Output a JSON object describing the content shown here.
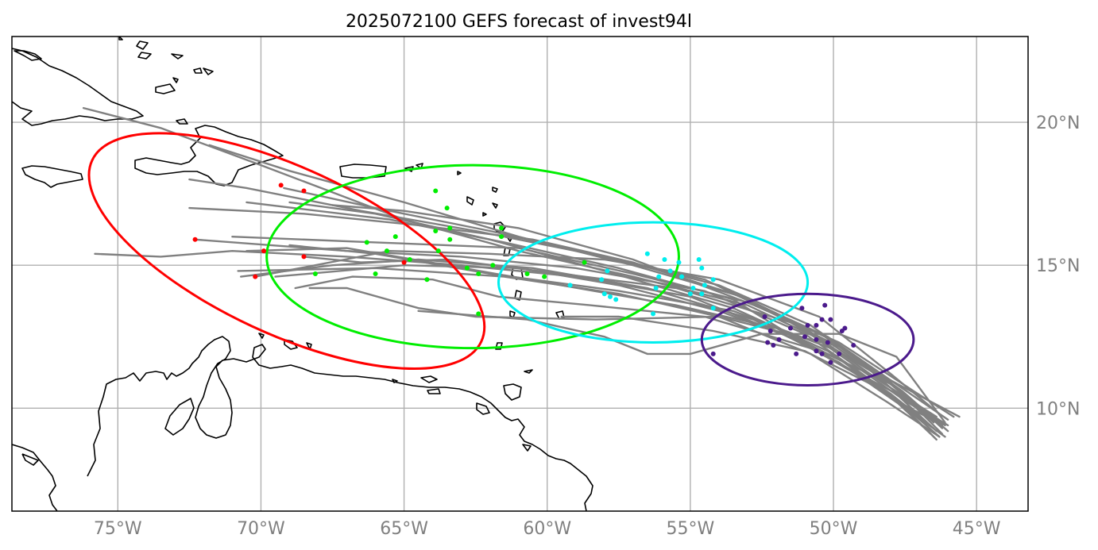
{
  "title": "2025072100 GEFS forecast of invest94l",
  "map": {
    "projection": "PlateCarree",
    "lon_range": [
      -78.7,
      -43.2
    ],
    "lat_range": [
      6.4,
      23.0
    ],
    "gridlines": true,
    "lon_ticks": [
      {
        "value": -75,
        "label": "75°W"
      },
      {
        "value": -70,
        "label": "70°W"
      },
      {
        "value": -65,
        "label": "65°W"
      },
      {
        "value": -60,
        "label": "60°W"
      },
      {
        "value": -55,
        "label": "55°W"
      },
      {
        "value": -50,
        "label": "50°W"
      },
      {
        "value": -45,
        "label": "45°W"
      }
    ],
    "lat_ticks": [
      {
        "value": 20,
        "label": "20°N"
      },
      {
        "value": 15,
        "label": "15°N"
      },
      {
        "value": 10,
        "label": "10°N"
      }
    ],
    "colors": {
      "tracks": "#808080",
      "coastline": "#000000",
      "grid": "#b0b0b0",
      "tick_labels": "#808080"
    }
  },
  "chart_data": {
    "type": "scatter",
    "title": "2025072100 GEFS forecast of invest94l",
    "x_unit": "longitude (deg)",
    "y_unit": "latitude (deg)",
    "tracks": [
      [
        [
          -46.2,
          9.3
        ],
        [
          -47.5,
          10.5
        ],
        [
          -50,
          12.2
        ],
        [
          -53,
          13.6
        ],
        [
          -57,
          14.6
        ],
        [
          -61,
          15.5
        ],
        [
          -65,
          16.6
        ],
        [
          -70,
          18.5
        ],
        [
          -73.5,
          19.8
        ],
        [
          -76.2,
          20.5
        ]
      ],
      [
        [
          -46.0,
          9.2
        ],
        [
          -47.6,
          10.6
        ],
        [
          -50.3,
          12.5
        ],
        [
          -53.2,
          13.9
        ],
        [
          -57,
          15.0
        ],
        [
          -61,
          16.0
        ],
        [
          -65,
          17.2
        ],
        [
          -69,
          18.3
        ],
        [
          -71.8,
          19.2
        ]
      ],
      [
        [
          -46.5,
          9.5
        ],
        [
          -48.0,
          10.9
        ],
        [
          -50.8,
          12.9
        ],
        [
          -54,
          14.3
        ],
        [
          -58,
          15.3
        ],
        [
          -62,
          16.2
        ],
        [
          -66,
          17.0
        ],
        [
          -69.2,
          17.7
        ]
      ],
      [
        [
          -46.3,
          9.0
        ],
        [
          -47.8,
          10.3
        ],
        [
          -50.2,
          12.0
        ],
        [
          -53.5,
          13.5
        ],
        [
          -58,
          14.8
        ],
        [
          -62,
          15.9
        ],
        [
          -66,
          16.8
        ],
        [
          -69,
          17.2
        ]
      ],
      [
        [
          -46.1,
          9.4
        ],
        [
          -47.4,
          10.2
        ],
        [
          -49.5,
          12.0
        ],
        [
          -52.5,
          13.5
        ],
        [
          -57,
          15.2
        ],
        [
          -61,
          16.3
        ],
        [
          -65,
          16.9
        ],
        [
          -67.5,
          17.1
        ]
      ],
      [
        [
          -45.8,
          9.7
        ],
        [
          -47.2,
          10.6
        ],
        [
          -49.8,
          12.3
        ],
        [
          -53,
          13.7
        ],
        [
          -57,
          14.7
        ],
        [
          -61,
          15.6
        ],
        [
          -66,
          15.8
        ],
        [
          -71,
          16.0
        ]
      ],
      [
        [
          -46.4,
          8.9
        ],
        [
          -48,
          10.5
        ],
        [
          -51,
          12.6
        ],
        [
          -54.5,
          14.1
        ],
        [
          -59,
          14.9
        ],
        [
          -63,
          15.3
        ],
        [
          -67,
          15.5
        ],
        [
          -72.3,
          15.9
        ]
      ],
      [
        [
          -46.2,
          9.1
        ],
        [
          -47.9,
          10.8
        ],
        [
          -51.3,
          12.4
        ],
        [
          -55,
          13.9
        ],
        [
          -59,
          14.6
        ],
        [
          -63,
          15.0
        ],
        [
          -67,
          15.3
        ],
        [
          -71,
          15.5
        ],
        [
          -73.5,
          15.3
        ],
        [
          -75.8,
          15.4
        ]
      ],
      [
        [
          -46.5,
          9.6
        ],
        [
          -48.2,
          11.0
        ],
        [
          -51.5,
          13.0
        ],
        [
          -55.5,
          14.2
        ],
        [
          -59.5,
          14.7
        ],
        [
          -63.5,
          15.2
        ],
        [
          -66.5,
          15.1
        ],
        [
          -68.5,
          15.3
        ]
      ],
      [
        [
          -46.0,
          9.4
        ],
        [
          -47.6,
          10.4
        ],
        [
          -50.8,
          12.1
        ],
        [
          -54.5,
          13.2
        ],
        [
          -58.5,
          13.6
        ],
        [
          -61.7,
          13.9
        ],
        [
          -64,
          14.5
        ],
        [
          -66.8,
          14.6
        ],
        [
          -68.8,
          14.2
        ]
      ],
      [
        [
          -46.3,
          9.8
        ],
        [
          -48.0,
          11.2
        ],
        [
          -50.5,
          13.2
        ],
        [
          -54,
          14.5
        ],
        [
          -58,
          15.2
        ],
        [
          -62,
          15.4
        ],
        [
          -65.5,
          15.5
        ],
        [
          -70.2,
          14.6
        ]
      ],
      [
        [
          -46.4,
          9.2
        ],
        [
          -47.7,
          10.4
        ],
        [
          -50.4,
          12.3
        ],
        [
          -54,
          13.2
        ],
        [
          -58.3,
          13.1
        ],
        [
          -62.5,
          13.2
        ],
        [
          -64.5,
          13.5
        ],
        [
          -67,
          14.2
        ],
        [
          -68.3,
          14.2
        ]
      ],
      [
        [
          -46.1,
          9.5
        ],
        [
          -47.8,
          11.8
        ],
        [
          -49.8,
          12.6
        ],
        [
          -52.5,
          12.6
        ],
        [
          -55,
          11.9
        ],
        [
          -56.5,
          11.9
        ],
        [
          -58,
          12.5
        ],
        [
          -60.7,
          13.1
        ],
        [
          -64.5,
          13.4
        ]
      ],
      [
        [
          -46.6,
          9.1
        ],
        [
          -48.2,
          10.6
        ],
        [
          -51,
          12.3
        ],
        [
          -54,
          13.4
        ],
        [
          -57.5,
          14.3
        ],
        [
          -61,
          14.9
        ],
        [
          -65,
          15.0
        ],
        [
          -69.5,
          14.6
        ]
      ],
      [
        [
          -47.2,
          9.8
        ],
        [
          -48.6,
          10.8
        ],
        [
          -51,
          12.0
        ],
        [
          -54.2,
          12.7
        ],
        [
          -57.5,
          13.2
        ],
        [
          -59.5,
          13.2
        ]
      ],
      [
        [
          -45.6,
          9.7
        ],
        [
          -47.3,
          10.6
        ],
        [
          -50.1,
          12.1
        ],
        [
          -53.5,
          13.4
        ],
        [
          -57.5,
          14.1
        ],
        [
          -62,
          14.7
        ],
        [
          -66,
          15.4
        ],
        [
          -69,
          15.7
        ]
      ],
      [
        [
          -46.2,
          9.4
        ],
        [
          -47.5,
          10.1
        ],
        [
          -49.4,
          11.5
        ],
        [
          -52,
          12.8
        ],
        [
          -55.5,
          13.6
        ],
        [
          -59.5,
          14.3
        ],
        [
          -63.5,
          15.0
        ],
        [
          -67,
          15.6
        ],
        [
          -70.5,
          15.5
        ]
      ],
      [
        [
          -46.5,
          9.3
        ],
        [
          -48,
          10.5
        ],
        [
          -50.6,
          12.0
        ],
        [
          -53.5,
          13.8
        ],
        [
          -57.5,
          14.9
        ],
        [
          -61.5,
          15.8
        ],
        [
          -65.5,
          16.6
        ],
        [
          -70.5,
          17.2
        ]
      ],
      [
        [
          -46.3,
          9.0
        ],
        [
          -48.1,
          10.2
        ],
        [
          -50.8,
          11.9
        ],
        [
          -54,
          13.2
        ],
        [
          -57.5,
          14.0
        ],
        [
          -61.5,
          14.6
        ],
        [
          -66,
          14.9
        ],
        [
          -70.8,
          14.8
        ]
      ],
      [
        [
          -46.0,
          9.6
        ],
        [
          -47.6,
          10.7
        ],
        [
          -50.2,
          12.5
        ],
        [
          -53.5,
          14.0
        ],
        [
          -57,
          15.1
        ],
        [
          -60.5,
          15.9
        ],
        [
          -64.5,
          16.4
        ],
        [
          -68.5,
          16.8
        ],
        [
          -72.5,
          17.0
        ]
      ],
      [
        [
          -46.4,
          9.7
        ],
        [
          -48.3,
          10.9
        ],
        [
          -51,
          12.8
        ],
        [
          -54.5,
          14.5
        ],
        [
          -58.5,
          15.4
        ],
        [
          -62.5,
          16.2
        ],
        [
          -66.5,
          16.9
        ],
        [
          -70.5,
          17.7
        ],
        [
          -72.5,
          18.0
        ]
      ],
      [
        [
          -46.1,
          9.0
        ],
        [
          -47.5,
          10.0
        ],
        [
          -49.8,
          11.6
        ],
        [
          -52.8,
          13.1
        ],
        [
          -56.5,
          14.2
        ],
        [
          -60.5,
          14.9
        ],
        [
          -64.5,
          15.2
        ],
        [
          -67.5,
          15.0
        ],
        [
          -70.7,
          14.6
        ]
      ]
    ],
    "clusters": [
      {
        "color": "#ff0000",
        "points": [
          [
            -69.3,
            17.8
          ],
          [
            -68.5,
            17.6
          ],
          [
            -72.3,
            15.9
          ],
          [
            -69.9,
            15.5
          ],
          [
            -68.5,
            15.3
          ],
          [
            -70.2,
            14.6
          ],
          [
            -65.0,
            15.1
          ]
        ],
        "ellipse": {
          "center": [
            -69.1,
            15.5
          ],
          "semi_axes_deg": [
            7.5,
            2.9
          ],
          "angle_deg": 25
        }
      },
      {
        "color": "#00ee00",
        "points": [
          [
            -63.9,
            17.6
          ],
          [
            -63.5,
            17.0
          ],
          [
            -61.6,
            16.3
          ],
          [
            -63.9,
            16.2
          ],
          [
            -63.4,
            16.3
          ],
          [
            -65.3,
            16.0
          ],
          [
            -63.4,
            15.9
          ],
          [
            -66.3,
            15.8
          ],
          [
            -63.8,
            15.5
          ],
          [
            -61.6,
            16.0
          ],
          [
            -65.6,
            15.5
          ],
          [
            -64.8,
            15.2
          ],
          [
            -62.8,
            14.9
          ],
          [
            -61.9,
            15.0
          ],
          [
            -60.7,
            14.7
          ],
          [
            -62.4,
            14.7
          ],
          [
            -66.0,
            14.7
          ],
          [
            -64.2,
            14.5
          ],
          [
            -68.1,
            14.7
          ],
          [
            -62.4,
            13.3
          ],
          [
            -58.7,
            15.1
          ],
          [
            -60.1,
            14.6
          ]
        ],
        "ellipse": {
          "center": [
            -62.6,
            15.3
          ],
          "semi_axes_deg": [
            7.2,
            3.2
          ],
          "angle_deg": 0
        }
      },
      {
        "color": "#00eeee",
        "points": [
          [
            -56.5,
            15.4
          ],
          [
            -55.9,
            15.2
          ],
          [
            -55.4,
            15.1
          ],
          [
            -54.7,
            15.2
          ],
          [
            -54.6,
            14.9
          ],
          [
            -55.7,
            14.8
          ],
          [
            -56.1,
            14.6
          ],
          [
            -54.2,
            14.5
          ],
          [
            -55.3,
            14.6
          ],
          [
            -56.2,
            14.2
          ],
          [
            -57.9,
            14.8
          ],
          [
            -58.1,
            14.5
          ],
          [
            -59.2,
            14.3
          ],
          [
            -58.0,
            14.0
          ],
          [
            -57.8,
            13.9
          ],
          [
            -54.5,
            14.3
          ],
          [
            -54.9,
            14.2
          ],
          [
            -54.6,
            14.0
          ],
          [
            -54.2,
            13.5
          ],
          [
            -56.3,
            13.3
          ],
          [
            -57.6,
            13.8
          ],
          [
            -55.0,
            14.0
          ]
        ],
        "ellipse": {
          "center": [
            -56.3,
            14.4
          ],
          "semi_axes_deg": [
            5.4,
            2.1
          ],
          "angle_deg": 0
        }
      },
      {
        "color": "#4b1a8c",
        "points": [
          [
            -51.1,
            13.5
          ],
          [
            -50.3,
            13.6
          ],
          [
            -50.4,
            13.1
          ],
          [
            -50.1,
            13.1
          ],
          [
            -50.6,
            12.9
          ],
          [
            -51.5,
            12.8
          ],
          [
            -50.9,
            12.9
          ],
          [
            -49.6,
            12.8
          ],
          [
            -52.2,
            12.7
          ],
          [
            -52.4,
            13.2
          ],
          [
            -51.9,
            12.4
          ],
          [
            -51.0,
            12.5
          ],
          [
            -50.2,
            12.3
          ],
          [
            -49.7,
            12.7
          ],
          [
            -49.3,
            12.2
          ],
          [
            -50.6,
            12.4
          ],
          [
            -52.1,
            12.2
          ],
          [
            -52.3,
            12.3
          ],
          [
            -51.3,
            11.9
          ],
          [
            -50.4,
            11.9
          ],
          [
            -50.1,
            11.6
          ],
          [
            -49.8,
            11.9
          ],
          [
            -50.6,
            12.0
          ],
          [
            -54.2,
            11.9
          ]
        ],
        "ellipse": {
          "center": [
            -50.9,
            12.4
          ],
          "semi_axes_deg": [
            3.7,
            1.6
          ],
          "angle_deg": 0
        }
      }
    ]
  }
}
